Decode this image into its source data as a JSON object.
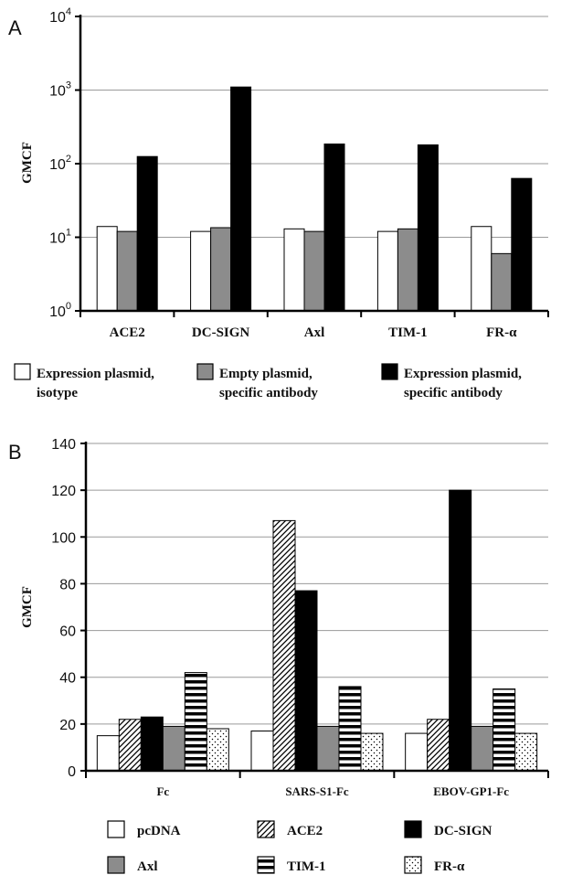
{
  "chart_data": [
    {
      "type": "bar",
      "panel": "A",
      "ylabel": "GMCF",
      "yscale": "log",
      "ylim": [
        1,
        10000
      ],
      "ytick_exponents": [
        "0",
        "1",
        "2",
        "3",
        "4"
      ],
      "ytick_base": "10",
      "grid": true,
      "legend_position": "bottom",
      "categories": [
        "ACE2",
        "DC-SIGN",
        "Axl",
        "TIM-1",
        "FR-α"
      ],
      "series": [
        {
          "name": "Expression plasmid, isotype",
          "legend_lines": [
            "Expression plasmid,",
            "isotype"
          ],
          "fill": "#ffffff",
          "values": [
            14,
            12,
            13,
            12,
            14
          ]
        },
        {
          "name": "Empty plasmid, specific antibody",
          "legend_lines": [
            "Empty plasmid,",
            "specific antibody"
          ],
          "fill": "#8c8c8c",
          "values": [
            12,
            13.5,
            12,
            13,
            6
          ]
        },
        {
          "name": "Expression plasmid, specific antibody",
          "legend_lines": [
            "Expression plasmid,",
            "specific antibody"
          ],
          "fill": "#000000",
          "values": [
            125,
            1100,
            185,
            180,
            63
          ]
        }
      ]
    },
    {
      "type": "bar",
      "panel": "B",
      "ylabel": "GMCF",
      "ylim": [
        0,
        140
      ],
      "yticks": [
        "0",
        "20",
        "40",
        "60",
        "80",
        "100",
        "120",
        "140"
      ],
      "grid": true,
      "legend_position": "bottom",
      "categories": [
        "Fc",
        "SARS-S1-Fc",
        "EBOV-GP1-Fc"
      ],
      "series": [
        {
          "name": "pcDNA",
          "pattern": "white",
          "values": [
            15,
            17,
            16
          ]
        },
        {
          "name": "ACE2",
          "pattern": "diagonal",
          "values": [
            22,
            107,
            22
          ]
        },
        {
          "name": "DC-SIGN",
          "pattern": "black",
          "values": [
            23,
            77,
            120
          ]
        },
        {
          "name": "Axl",
          "pattern": "gray",
          "values": [
            19,
            19,
            19
          ]
        },
        {
          "name": "TIM-1",
          "pattern": "horizontal",
          "values": [
            42,
            36,
            35
          ]
        },
        {
          "name": "FR-α",
          "pattern": "dots",
          "values": [
            18,
            16,
            16
          ]
        }
      ]
    }
  ]
}
